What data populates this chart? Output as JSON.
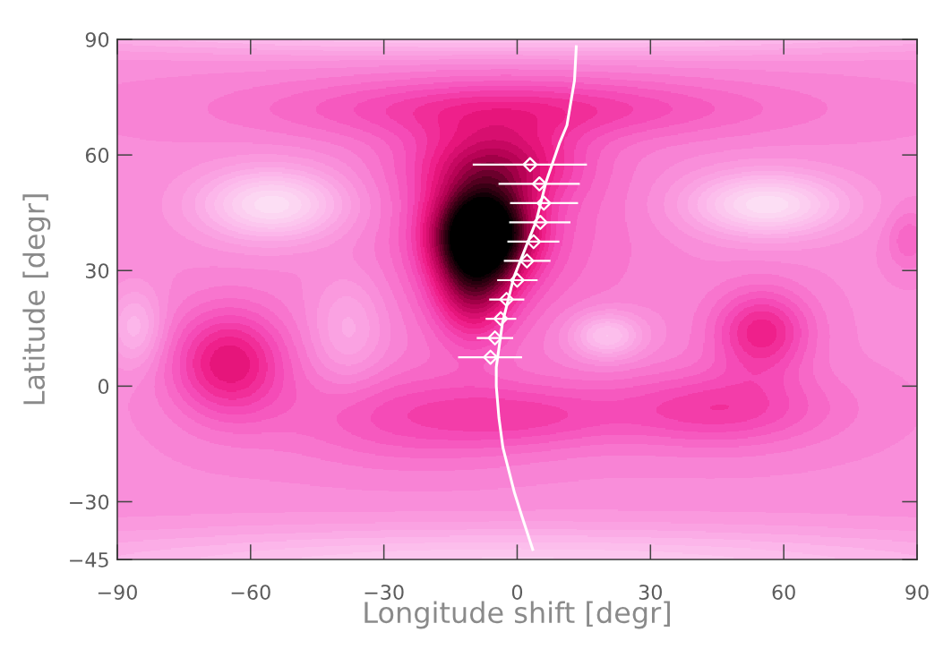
{
  "chart_data": {
    "type": "scatter",
    "xlabel": "Longitude shift [degr]",
    "ylabel": "Latitude [degr]",
    "xlim": [
      -90,
      90
    ],
    "ylim": [
      -45,
      90
    ],
    "xticks": [
      {
        "value": -90,
        "label": "−90"
      },
      {
        "value": -60,
        "label": "−60"
      },
      {
        "value": -30,
        "label": "−30"
      },
      0,
      30,
      60,
      90
    ],
    "yticks": [
      {
        "value": -45,
        "label": "−45"
      },
      {
        "value": -30,
        "label": "−30"
      },
      0,
      30,
      60,
      90
    ],
    "grid": false,
    "series": [
      {
        "type": "scatter",
        "color": "#ffffff",
        "marker": "diamond",
        "x": [
          -6.0,
          -5.0,
          -3.7,
          -2.4,
          0.0,
          2.2,
          3.7,
          5.2,
          6.0,
          5.0,
          2.9
        ],
        "values": [
          7.5,
          12.5,
          17.5,
          22.5,
          27.5,
          32.5,
          37.5,
          42.5,
          47.5,
          52.5,
          57.5
        ],
        "xerrors": [
          [
            -13.3,
            1.1
          ],
          [
            -9.1,
            -0.9
          ],
          [
            -7.1,
            -0.2
          ],
          [
            -6.3,
            1.6
          ],
          [
            -4.5,
            4.6
          ],
          [
            -3.0,
            7.5
          ],
          [
            -2.2,
            9.5
          ],
          [
            -1.8,
            12.0
          ],
          [
            -1.6,
            13.7
          ],
          [
            -4.2,
            14.1
          ],
          [
            -10.0,
            15.7
          ]
        ]
      },
      {
        "type": "line",
        "color": "#ffffff",
        "marker": "none",
        "line_style": "solid",
        "x": [
          3.5,
          1.1,
          -0.6,
          -3.2,
          -4.1,
          -4.7,
          -4.7,
          -3.3,
          -0.8,
          4.3,
          6.5,
          8.0,
          9.5,
          11.2,
          12.9,
          13.3
        ],
        "values": [
          -42.4,
          -33.9,
          -27.7,
          -16,
          -8.3,
          0,
          4.9,
          16.5,
          28.1,
          42.9,
          53,
          58,
          63,
          67.7,
          79.3,
          88.1
        ]
      }
    ]
  }
}
